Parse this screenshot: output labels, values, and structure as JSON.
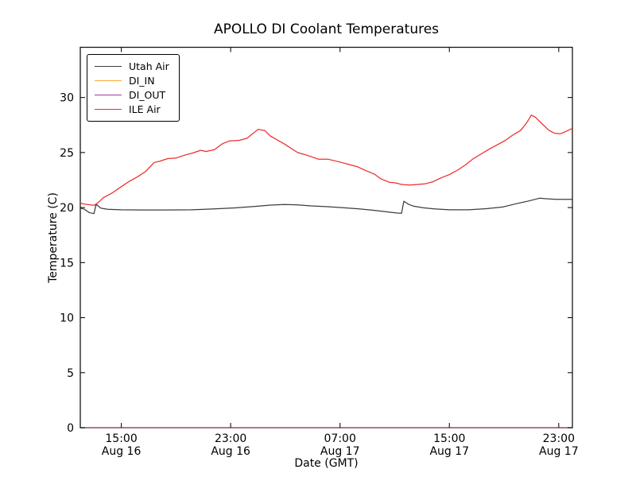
{
  "chart_data": {
    "type": "line",
    "title": "APOLLO DI Coolant Temperatures",
    "xlabel": "Date (GMT)",
    "ylabel": "Temperature (C)",
    "x_unit": "hours since Aug 16 12:00 GMT",
    "xlim": [
      0,
      36
    ],
    "ylim": [
      0,
      34.56
    ],
    "grid": false,
    "yticks": [
      0,
      5,
      10,
      15,
      20,
      25,
      30
    ],
    "xticks": [
      {
        "t": 3,
        "lines": [
          "15:00",
          "Aug 16"
        ]
      },
      {
        "t": 11,
        "lines": [
          "23:00",
          "Aug 16"
        ]
      },
      {
        "t": 19,
        "lines": [
          "07:00",
          "Aug 17"
        ]
      },
      {
        "t": 27,
        "lines": [
          "15:00",
          "Aug 17"
        ]
      },
      {
        "t": 35,
        "lines": [
          "23:00",
          "Aug 17"
        ]
      }
    ],
    "legend": {
      "position": "upper left"
    },
    "series": [
      {
        "name": "Utah Air",
        "color": "#3c3c3c",
        "points": [
          [
            0,
            19.95
          ],
          [
            0.3,
            19.85
          ],
          [
            0.64,
            19.55
          ],
          [
            1,
            19.45
          ],
          [
            1.16,
            20.3
          ],
          [
            1.5,
            19.95
          ],
          [
            2,
            19.85
          ],
          [
            3,
            19.8
          ],
          [
            4.6,
            19.78
          ],
          [
            6.3,
            19.78
          ],
          [
            8.1,
            19.8
          ],
          [
            9.8,
            19.88
          ],
          [
            11.3,
            19.97
          ],
          [
            12.7,
            20.1
          ],
          [
            13.9,
            20.22
          ],
          [
            14.9,
            20.28
          ],
          [
            15.8,
            20.25
          ],
          [
            16.9,
            20.15
          ],
          [
            18.1,
            20.08
          ],
          [
            19.3,
            19.98
          ],
          [
            20.4,
            19.88
          ],
          [
            21.6,
            19.73
          ],
          [
            22.5,
            19.6
          ],
          [
            23.2,
            19.5
          ],
          [
            23.5,
            19.48
          ],
          [
            23.67,
            20.58
          ],
          [
            24,
            20.3
          ],
          [
            24.4,
            20.12
          ],
          [
            25.1,
            19.98
          ],
          [
            25.9,
            19.88
          ],
          [
            27,
            19.8
          ],
          [
            28.4,
            19.8
          ],
          [
            29.7,
            19.9
          ],
          [
            30.9,
            20.05
          ],
          [
            31.9,
            20.35
          ],
          [
            32.8,
            20.6
          ],
          [
            33.6,
            20.85
          ],
          [
            34.1,
            20.8
          ],
          [
            34.8,
            20.75
          ],
          [
            36,
            20.75
          ]
        ]
      },
      {
        "name": "DI_IN",
        "color": "#ffaa38",
        "points": [
          [
            0,
            0
          ],
          [
            36,
            0
          ]
        ]
      },
      {
        "name": "DI_OUT",
        "color": "#9a3a9e",
        "points": [
          [
            0,
            0
          ],
          [
            36,
            0
          ]
        ]
      },
      {
        "name": "ILE Air",
        "color": "#ee2c2c",
        "points": [
          [
            0,
            20.4
          ],
          [
            0.35,
            20.3
          ],
          [
            0.7,
            20.25
          ],
          [
            1,
            20.2
          ],
          [
            1.3,
            20.45
          ],
          [
            1.7,
            20.9
          ],
          [
            2.3,
            21.3
          ],
          [
            3,
            21.9
          ],
          [
            3.6,
            22.4
          ],
          [
            4.2,
            22.8
          ],
          [
            4.8,
            23.3
          ],
          [
            5.4,
            24.1
          ],
          [
            5.8,
            24.2
          ],
          [
            6.4,
            24.45
          ],
          [
            7,
            24.5
          ],
          [
            7.6,
            24.75
          ],
          [
            8.2,
            24.95
          ],
          [
            8.8,
            25.2
          ],
          [
            9.2,
            25.1
          ],
          [
            9.8,
            25.25
          ],
          [
            10.4,
            25.8
          ],
          [
            10.9,
            26.05
          ],
          [
            11.6,
            26.1
          ],
          [
            12.2,
            26.3
          ],
          [
            13,
            27.1
          ],
          [
            13.5,
            27.0
          ],
          [
            13.9,
            26.5
          ],
          [
            14.9,
            25.8
          ],
          [
            15.9,
            25.0
          ],
          [
            16.6,
            24.75
          ],
          [
            17.4,
            24.4
          ],
          [
            18.1,
            24.4
          ],
          [
            18.6,
            24.25
          ],
          [
            19.1,
            24.1
          ],
          [
            19.7,
            23.9
          ],
          [
            20.3,
            23.7
          ],
          [
            20.9,
            23.35
          ],
          [
            21.5,
            23.05
          ],
          [
            22,
            22.6
          ],
          [
            22.6,
            22.3
          ],
          [
            23,
            22.25
          ],
          [
            23.5,
            22.1
          ],
          [
            24.1,
            22.05
          ],
          [
            24.7,
            22.1
          ],
          [
            25.2,
            22.15
          ],
          [
            25.8,
            22.35
          ],
          [
            26.4,
            22.7
          ],
          [
            27,
            23.0
          ],
          [
            27.6,
            23.4
          ],
          [
            28.2,
            23.9
          ],
          [
            28.7,
            24.4
          ],
          [
            29.3,
            24.85
          ],
          [
            29.9,
            25.3
          ],
          [
            30.5,
            25.7
          ],
          [
            31.1,
            26.1
          ],
          [
            31.6,
            26.55
          ],
          [
            32.2,
            27.0
          ],
          [
            32.6,
            27.6
          ],
          [
            33,
            28.4
          ],
          [
            33.3,
            28.2
          ],
          [
            33.7,
            27.7
          ],
          [
            34.3,
            27.0
          ],
          [
            34.7,
            26.75
          ],
          [
            35.1,
            26.7
          ],
          [
            35.5,
            26.9
          ],
          [
            36,
            27.2
          ]
        ]
      }
    ]
  }
}
